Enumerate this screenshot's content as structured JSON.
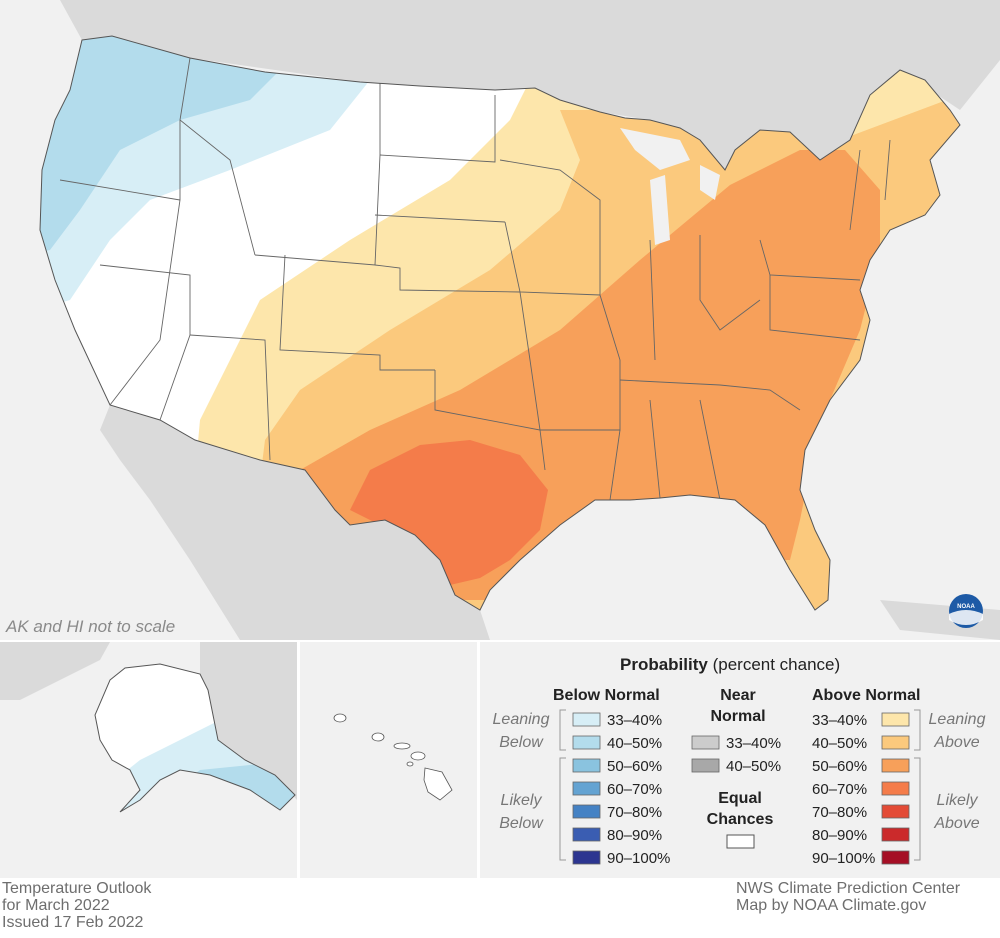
{
  "map": {
    "scale_note": "AK and HI not to scale",
    "logo_text": "NOAA",
    "colors": {
      "land_other": "#dadada",
      "water": "#f1f1f1",
      "equal_chances": "#ffffff",
      "below_33_40": "#d7eef6",
      "below_40_50": "#b3dcec",
      "above_33_40": "#fde6ab",
      "above_40_50": "#fbc97d",
      "above_50_60": "#f7a05a",
      "above_60_70": "#f47c4a"
    }
  },
  "legend": {
    "title_bold": "Probability",
    "title_rest": "(percent chance)",
    "below_header": "Below Normal",
    "near_header_1": "Near",
    "near_header_2": "Normal",
    "above_header": "Above Normal",
    "leaning_below_1": "Leaning",
    "leaning_below_2": "Below",
    "likely_below_1": "Likely",
    "likely_below_2": "Below",
    "leaning_above_1": "Leaning",
    "leaning_above_2": "Above",
    "likely_above_1": "Likely",
    "likely_above_2": "Above",
    "equal_1": "Equal",
    "equal_2": "Chances",
    "below_items": [
      {
        "label": "33–40%",
        "color": "#d7eef6"
      },
      {
        "label": "40–50%",
        "color": "#b3dcec"
      },
      {
        "label": "50–60%",
        "color": "#8ac3df"
      },
      {
        "label": "60–70%",
        "color": "#64a3d2"
      },
      {
        "label": "70–80%",
        "color": "#4582c4"
      },
      {
        "label": "80–90%",
        "color": "#3a5db2"
      },
      {
        "label": "90–100%",
        "color": "#2c3590"
      }
    ],
    "near_items": [
      {
        "label": "33–40%",
        "color": "#cccccc"
      },
      {
        "label": "40–50%",
        "color": "#a8a8a8"
      }
    ],
    "above_items": [
      {
        "label": "33–40%",
        "color": "#fde6ab"
      },
      {
        "label": "40–50%",
        "color": "#fbc97d"
      },
      {
        "label": "50–60%",
        "color": "#f7a05a"
      },
      {
        "label": "60–70%",
        "color": "#f47c4a"
      },
      {
        "label": "70–80%",
        "color": "#e34b36"
      },
      {
        "label": "80–90%",
        "color": "#cb2a2b"
      },
      {
        "label": "90–100%",
        "color": "#a50f25"
      }
    ]
  },
  "footer": {
    "left_1": "Temperature Outlook",
    "left_2": "for March 2022",
    "left_3": "Issued 17 Feb 2022",
    "right_1": "NWS Climate Prediction Center",
    "right_2": "Map by NOAA Climate.gov"
  }
}
